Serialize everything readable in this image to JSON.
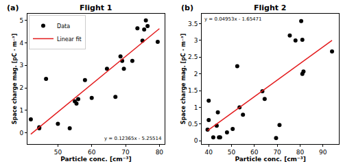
{
  "chart_data": [
    {
      "type": "scatter",
      "panel": "(a)",
      "title": "Flight 1",
      "xlabel": "Particle conc. [cm⁻³]",
      "ylabel": "Space charge mag. [pC · m⁻³]",
      "xlim": [
        41,
        81.5
      ],
      "xticks": [
        50,
        60,
        70,
        80
      ],
      "ylim": [
        -0.5,
        5.3
      ],
      "yticks": [
        0,
        1,
        2,
        3,
        4,
        5
      ],
      "grid": false,
      "legend": "upper left",
      "annotation": "y = 0.12365x - 5.25514",
      "series": [
        {
          "name": "Data",
          "type": "scatter",
          "marker": "circle",
          "color": "#000000",
          "x": [
            42,
            44.5,
            44.5,
            46.5,
            50,
            53.5,
            55,
            55.5,
            56,
            58,
            60,
            64.5,
            67,
            68.5,
            69,
            69.5,
            72,
            73.5,
            75,
            75.5,
            76,
            76.5,
            79.5
          ],
          "values": [
            0.6,
            0.25,
            0.2,
            2.4,
            0.4,
            0.2,
            1.4,
            1.3,
            1.5,
            2.35,
            1.55,
            2.85,
            1.6,
            3.4,
            3.2,
            2.85,
            3.2,
            4.65,
            4.1,
            4.6,
            5.0,
            4.75,
            4.05
          ]
        },
        {
          "name": "Linear fit",
          "type": "line",
          "line_style": "solid",
          "color": "#e31a1c",
          "x": [
            42,
            80
          ],
          "values": [
            -0.0618,
            4.6369
          ]
        }
      ]
    },
    {
      "type": "scatter",
      "panel": "(b)",
      "title": "Flight 2",
      "xlabel": "Particle conc. [cm⁻³]",
      "ylabel": "Space charge mag. [pC · m⁻³]",
      "xlim": [
        37,
        97
      ],
      "xticks": [
        40,
        50,
        60,
        70,
        80,
        90
      ],
      "ylim": [
        -0.1,
        3.8
      ],
      "yticks": [
        0,
        0.5,
        1,
        1.5,
        2,
        2.5,
        3,
        3.5
      ],
      "grid": false,
      "annotation": "y = 0.04953x - 1.65471",
      "series": [
        {
          "name": "Data",
          "type": "scatter",
          "marker": "circle",
          "color": "#000000",
          "x": [
            39.5,
            40,
            40,
            42,
            43.5,
            44,
            44.5,
            45,
            48,
            50.5,
            52.5,
            53.5,
            55,
            63.5,
            64.5,
            69.5,
            71,
            75.5,
            78,
            80.5,
            81,
            81,
            81.5,
            94
          ],
          "values": [
            0.33,
            1.2,
            0.62,
            0.1,
            0.45,
            0.85,
            0.1,
            0.1,
            0.25,
            0.35,
            2.23,
            1.0,
            0.78,
            1.48,
            1.25,
            0.08,
            0.47,
            3.15,
            3.0,
            3.58,
            3.02,
            2.0,
            2.07,
            2.67
          ]
        },
        {
          "name": "Linear fit",
          "type": "line",
          "line_style": "solid",
          "color": "#e31a1c",
          "x": [
            39.5,
            94
          ],
          "values": [
            0.3017,
            3.0011
          ]
        }
      ]
    }
  ]
}
